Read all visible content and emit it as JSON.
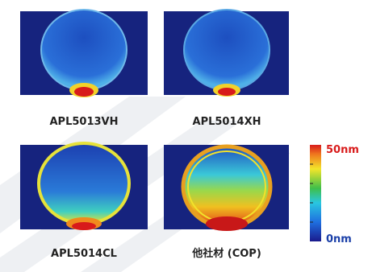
{
  "panels": [
    {
      "label": "APL5013VH"
    },
    {
      "label": "APL5014XH"
    },
    {
      "label": "APL5014CL"
    },
    {
      "label": "他社材 (COP)"
    }
  ],
  "scale": {
    "max_label": "50nm",
    "min_label": "0nm"
  }
}
